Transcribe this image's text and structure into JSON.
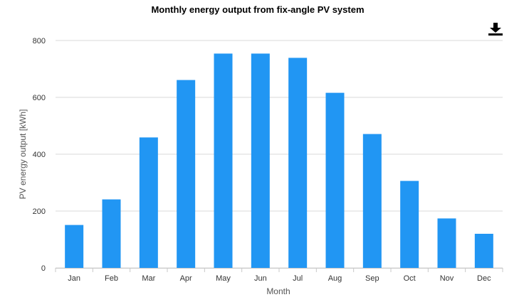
{
  "chart_data": {
    "type": "bar",
    "title": "Monthly energy output from fix-angle PV system",
    "xlabel": "Month",
    "ylabel": "PV energy output [kWh]",
    "categories": [
      "Jan",
      "Feb",
      "Mar",
      "Apr",
      "May",
      "Jun",
      "Jul",
      "Aug",
      "Sep",
      "Oct",
      "Nov",
      "Dec"
    ],
    "values": [
      151,
      241,
      459,
      661,
      754,
      754,
      739,
      616,
      471,
      306,
      174,
      120
    ],
    "ylim": [
      0,
      800
    ],
    "yticks": [
      "0",
      "200",
      "400",
      "600",
      "800"
    ],
    "grid": true,
    "legend": "none",
    "bar_color": "#2196f3"
  },
  "toolbar": {
    "download_icon": "download-icon"
  }
}
